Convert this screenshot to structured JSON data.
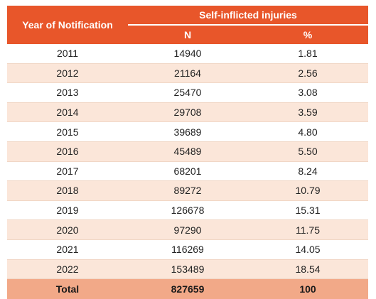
{
  "table": {
    "header": {
      "year_label": "Year of Notification",
      "group_label": "Self-inflicted injuries",
      "n_label": "N",
      "pct_label": "%"
    },
    "rows": [
      {
        "year": "2011",
        "n": "14940",
        "pct": "1.81"
      },
      {
        "year": "2012",
        "n": "21164",
        "pct": "2.56"
      },
      {
        "year": "2013",
        "n": "25470",
        "pct": "3.08"
      },
      {
        "year": "2014",
        "n": "29708",
        "pct": "3.59"
      },
      {
        "year": "2015",
        "n": "39689",
        "pct": "4.80"
      },
      {
        "year": "2016",
        "n": "45489",
        "pct": "5.50"
      },
      {
        "year": "2017",
        "n": "68201",
        "pct": "8.24"
      },
      {
        "year": "2018",
        "n": "89272",
        "pct": "10.79"
      },
      {
        "year": "2019",
        "n": "126678",
        "pct": "15.31"
      },
      {
        "year": "2020",
        "n": "97290",
        "pct": "11.75"
      },
      {
        "year": "2021",
        "n": "116269",
        "pct": "14.05"
      },
      {
        "year": "2022",
        "n": "153489",
        "pct": "18.54"
      }
    ],
    "total": {
      "label": "Total",
      "n": "827659",
      "pct": "100"
    }
  },
  "colors": {
    "header_bg": "#e8562a",
    "stripe_bg": "#fbe6d9",
    "total_bg": "#f2a988"
  }
}
